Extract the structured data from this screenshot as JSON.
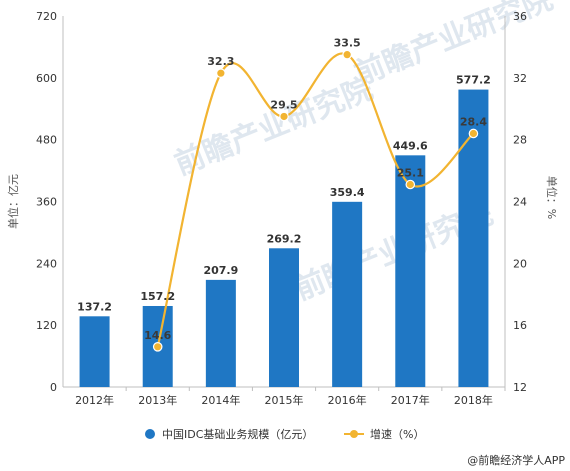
{
  "chart_data": {
    "type": "bar",
    "categories": [
      "2012年",
      "2013年",
      "2014年",
      "2015年",
      "2016年",
      "2017年",
      "2018年"
    ],
    "series": [
      {
        "name": "中国IDC基础业务规模（亿元）",
        "type": "bar",
        "axis": "left",
        "values": [
          137.2,
          157.2,
          207.9,
          269.2,
          359.4,
          449.6,
          577.2
        ],
        "labels": [
          "137.2",
          "157.2",
          "207.9",
          "269.2",
          "359.4",
          "449.6",
          "577.2"
        ]
      },
      {
        "name": "增速（%）",
        "type": "line",
        "axis": "right",
        "values": [
          null,
          14.6,
          32.3,
          29.5,
          33.5,
          25.1,
          28.4
        ],
        "labels": [
          "",
          "14.6",
          "32.3",
          "29.5",
          "33.5",
          "25.1",
          "28.4"
        ]
      }
    ],
    "ylabel": "单位：亿元",
    "y2label": "单位：%",
    "ylim": [
      0,
      720
    ],
    "y2lim": [
      12,
      36
    ],
    "yticks": [
      "0",
      "120",
      "240",
      "360",
      "480",
      "600",
      "720"
    ],
    "y2ticks": [
      "12",
      "16",
      "20",
      "24",
      "28",
      "32",
      "36"
    ],
    "legend": "bottom",
    "grid": false,
    "colors": {
      "bar": "#1f77c4",
      "line": "#f2b431"
    }
  },
  "watermark": "前瞻产业研究院",
  "source": "@前瞻经济学人APP"
}
